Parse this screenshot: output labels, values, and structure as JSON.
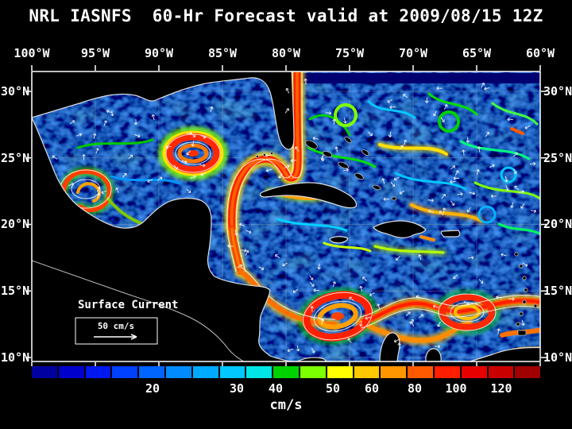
{
  "title": "NRL IASNFS  60-Hr Forecast valid at 2009/08/15 12Z",
  "map": {
    "overlay_label": "Surface Current",
    "scale_label": "50 cm/s",
    "lon_labels": [
      "100°W",
      "95°W",
      "90°W",
      "85°W",
      "80°W",
      "75°W",
      "70°W",
      "65°W",
      "60°W"
    ],
    "lat_labels": [
      "30°N",
      "25°N",
      "20°N",
      "15°N",
      "10°N"
    ]
  },
  "colorbar": {
    "unit_label": "cm/s",
    "tick_labels": [
      "20",
      "30",
      "40",
      "50",
      "60",
      "80",
      "100",
      "120"
    ],
    "segment_colors": [
      "#0000A0",
      "#0000CD",
      "#0018F0",
      "#0040FF",
      "#0064FF",
      "#008CFF",
      "#00AAFF",
      "#00C8FF",
      "#00E6E6",
      "#00D200",
      "#7CFF00",
      "#FFFF00",
      "#FFC800",
      "#FF9600",
      "#FF5A00",
      "#FF1E00",
      "#E60000",
      "#C80000",
      "#A00000"
    ]
  }
}
